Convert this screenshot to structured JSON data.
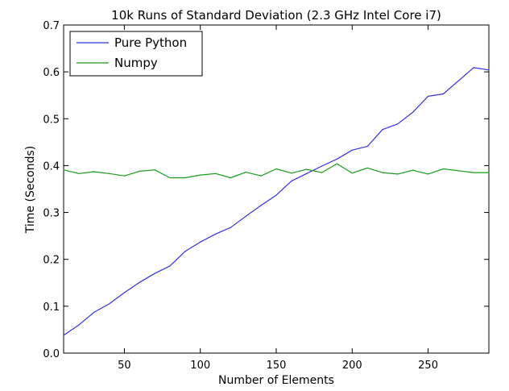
{
  "chart_data": {
    "type": "line",
    "title": "10k Runs of Standard Deviation (2.3 GHz Intel Core i7)",
    "xlabel": "Number of Elements",
    "ylabel": "Time (Seconds)",
    "xlim": [
      10,
      290
    ],
    "ylim": [
      0.0,
      0.7
    ],
    "x_ticks": [
      50,
      100,
      150,
      200,
      250
    ],
    "y_ticks": [
      0.0,
      0.1,
      0.2,
      0.3,
      0.4,
      0.5,
      0.6,
      0.7
    ],
    "x_tick_labels": [
      "50",
      "100",
      "150",
      "200",
      "250"
    ],
    "y_tick_labels": [
      "0.0",
      "0.1",
      "0.2",
      "0.3",
      "0.4",
      "0.5",
      "0.6",
      "0.7"
    ],
    "grid": false,
    "legend_position": "top-left",
    "x": [
      10,
      20,
      30,
      40,
      50,
      60,
      70,
      80,
      90,
      100,
      110,
      120,
      130,
      140,
      150,
      160,
      170,
      180,
      190,
      200,
      210,
      220,
      230,
      240,
      250,
      260,
      270,
      280,
      290
    ],
    "series": [
      {
        "name": "Pure Python",
        "color": "#3333dd",
        "values": [
          0.038,
          0.06,
          0.087,
          0.105,
          0.129,
          0.151,
          0.17,
          0.186,
          0.217,
          0.237,
          0.254,
          0.268,
          0.292,
          0.315,
          0.337,
          0.367,
          0.383,
          0.399,
          0.414,
          0.433,
          0.441,
          0.477,
          0.489,
          0.514,
          0.548,
          0.553,
          0.581,
          0.609,
          0.604
        ]
      },
      {
        "name": "Numpy",
        "color": "#1a9a1a",
        "values": [
          0.391,
          0.383,
          0.387,
          0.383,
          0.378,
          0.388,
          0.391,
          0.374,
          0.374,
          0.38,
          0.383,
          0.374,
          0.386,
          0.378,
          0.393,
          0.384,
          0.392,
          0.385,
          0.404,
          0.384,
          0.395,
          0.385,
          0.382,
          0.39,
          0.382,
          0.393,
          0.389,
          0.385,
          0.385
        ]
      }
    ]
  }
}
